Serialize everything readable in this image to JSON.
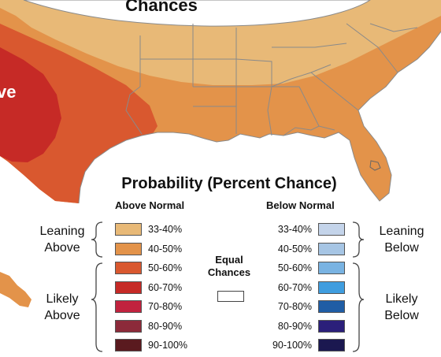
{
  "map": {
    "label_top": "Chances",
    "label_left": "ve",
    "colors": {
      "ocean": "#ffffff",
      "lean_above_33_40": "#e8b977",
      "lean_above_40_50": "#e3934a",
      "likely_above_50_60": "#d9582f",
      "likely_above_60_70": "#c62a26",
      "state_border": "#8a8a8a",
      "land_outside": "#f2f2f2"
    }
  },
  "legend": {
    "title": "Probability (Percent Chance)",
    "above_header": "Above Normal",
    "below_header": "Below Normal",
    "leaning_above": [
      "Leaning",
      "Above"
    ],
    "likely_above": [
      "Likely",
      "Above"
    ],
    "leaning_below": [
      "Leaning",
      "Below"
    ],
    "likely_below": [
      "Likely",
      "Below"
    ],
    "equal_chances": [
      "Equal",
      "Chances"
    ],
    "above": [
      {
        "label": "33-40%",
        "color": "#e8b977"
      },
      {
        "label": "40-50%",
        "color": "#e3934a"
      },
      {
        "label": "50-60%",
        "color": "#d9582f"
      },
      {
        "label": "60-70%",
        "color": "#c62a26"
      },
      {
        "label": "70-80%",
        "color": "#c1223e"
      },
      {
        "label": "80-90%",
        "color": "#8c2a3a"
      },
      {
        "label": "90-100%",
        "color": "#5a1a1f"
      }
    ],
    "below": [
      {
        "label": "33-40%",
        "color": "#c4d4ea"
      },
      {
        "label": "40-50%",
        "color": "#a6c5e4"
      },
      {
        "label": "50-60%",
        "color": "#79b3e2"
      },
      {
        "label": "60-70%",
        "color": "#3f9ddf"
      },
      {
        "label": "70-80%",
        "color": "#1f5da5"
      },
      {
        "label": "80-90%",
        "color": "#2b1f7a"
      },
      {
        "label": "90-100%",
        "color": "#1b1850"
      }
    ]
  }
}
